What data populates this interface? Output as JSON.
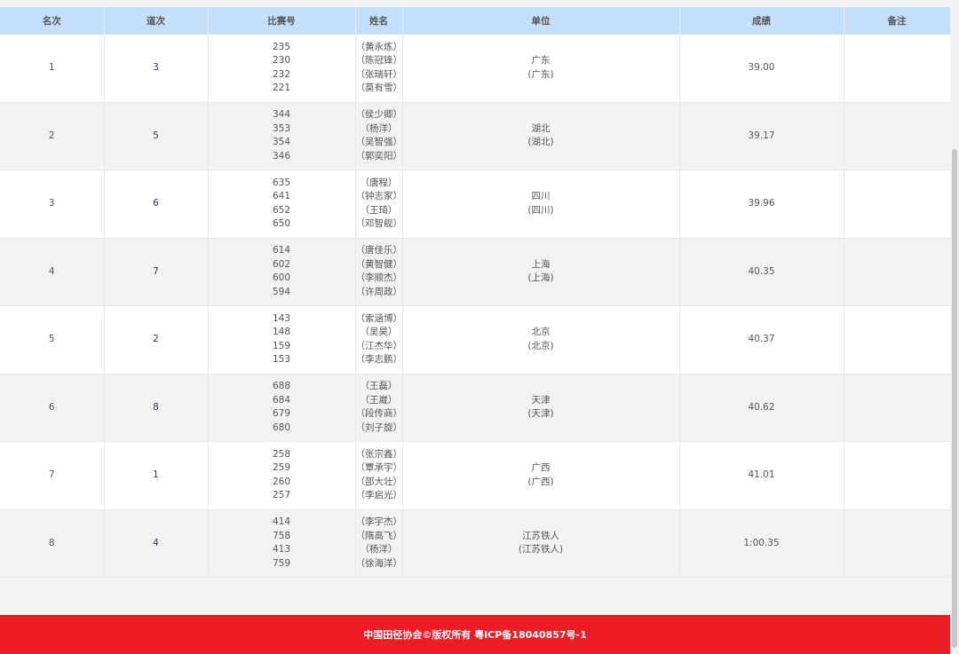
{
  "headers": [
    "名次",
    "道次",
    "比赛号",
    "姓名",
    "单位",
    "成绩",
    "备注"
  ],
  "rows": [
    {
      "rank": "1",
      "lane": "3",
      "bibs": [
        "235",
        "230",
        "232",
        "221"
      ],
      "names": [
        "（黄永炼）",
        "（陈冠锋）",
        "（张瑞轩）",
        "（莫有雪）"
      ],
      "unit": "广东",
      "unit_sub": "(广东)",
      "result": "39.00",
      "note": ""
    },
    {
      "rank": "2",
      "lane": "5",
      "bibs": [
        "344",
        "353",
        "354",
        "346"
      ],
      "names": [
        "（侯少卿）",
        "（杨洋）",
        "（吴智强）",
        "（郭奕阳）"
      ],
      "unit": "湖北",
      "unit_sub": "(湖北)",
      "result": "39.17",
      "note": ""
    },
    {
      "rank": "3",
      "lane": "6",
      "bibs": [
        "635",
        "641",
        "652",
        "650"
      ],
      "names": [
        "（唐程）",
        "（钟志家）",
        "（王琦）",
        "（邓智舰）"
      ],
      "unit": "四川",
      "unit_sub": "(四川)",
      "result": "39.96",
      "note": ""
    },
    {
      "rank": "4",
      "lane": "7",
      "bibs": [
        "614",
        "602",
        "600",
        "594"
      ],
      "names": [
        "（唐佳乐）",
        "（黄智健）",
        "（李顺杰）",
        "（许周政）"
      ],
      "unit": "上海",
      "unit_sub": "(上海)",
      "result": "40.35",
      "note": ""
    },
    {
      "rank": "5",
      "lane": "2",
      "bibs": [
        "143",
        "148",
        "159",
        "153"
      ],
      "names": [
        "（索涵博）",
        "（吴昊）",
        "（江杰华）",
        "（李志鹏）"
      ],
      "unit": "北京",
      "unit_sub": "(北京)",
      "result": "40.37",
      "note": ""
    },
    {
      "rank": "6",
      "lane": "8",
      "bibs": [
        "688",
        "684",
        "679",
        "680"
      ],
      "names": [
        "（王磊）",
        "（王崴）",
        "（段传商）",
        "（刘子旋）"
      ],
      "unit": "天津",
      "unit_sub": "(天津)",
      "result": "40.62",
      "note": ""
    },
    {
      "rank": "7",
      "lane": "1",
      "bibs": [
        "258",
        "259",
        "260",
        "257"
      ],
      "names": [
        "（张宗鑫）",
        "（覃承宇）",
        "（邵大壮）",
        "（李启光）"
      ],
      "unit": "广西",
      "unit_sub": "(广西)",
      "result": "41.01",
      "note": ""
    },
    {
      "rank": "8",
      "lane": "4",
      "bibs": [
        "414",
        "758",
        "413",
        "759"
      ],
      "names": [
        "（李宇杰）",
        "（隋高飞）",
        "（杨洋）",
        "（徐海洋）"
      ],
      "unit": "江苏铁人",
      "unit_sub": "(江苏铁人)",
      "result": "1:00.35",
      "note": ""
    }
  ],
  "footer": {
    "text": "中国田径协会©版权所有 粤ICP备18040857号-1"
  },
  "colors": {
    "header_bg": "#c4dffa",
    "footer_bg": "#ee1c25"
  }
}
